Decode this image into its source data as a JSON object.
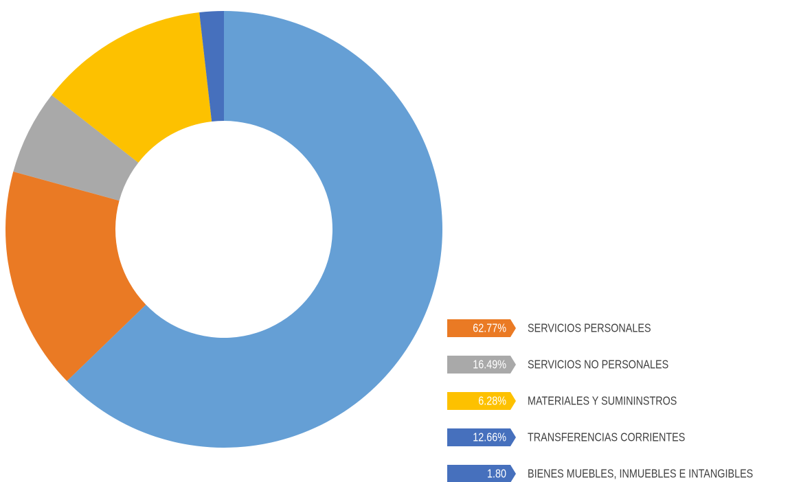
{
  "chart_data": {
    "type": "donut",
    "categories": [
      "SERVICIOS PERSONALES",
      "SERVICIOS NO PERSONALES",
      "MATERIALES Y SUMININSTROS",
      "TRANSFERENCIAS CORRIENTES",
      "BIENES MUEBLES, INMUEBLES E INTANGIBLES"
    ],
    "values": [
      62.77,
      16.49,
      6.28,
      12.66,
      1.8
    ],
    "value_labels": [
      "62.77%",
      "16.49%",
      "6.28%",
      "12.66%",
      "1.80"
    ],
    "colors": [
      "#659fd5",
      "#ea7a24",
      "#a9a9a9",
      "#fdc100",
      "#4670bd"
    ],
    "legend_colors": [
      "#ea7a24",
      "#a9a9a9",
      "#fdc100",
      "#4670bd",
      "#4670bd"
    ],
    "legend": "bottom-right"
  }
}
